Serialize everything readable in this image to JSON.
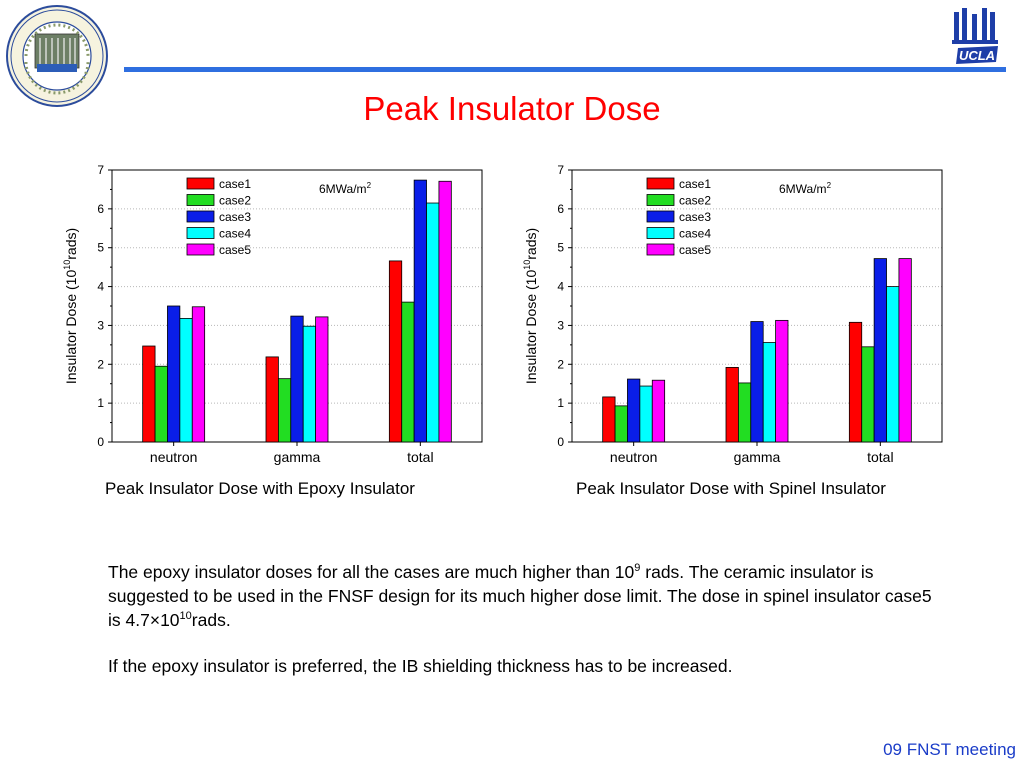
{
  "slide": {
    "title": "Peak Insulator Dose",
    "footer": "09 FNST meeting",
    "seal_text": "SCHOOL OF ENGINEERING AND APPLIED SCIENCE · UCLA",
    "logo_text": "UCLA"
  },
  "colors": {
    "title": "#ff0000",
    "rule": "#2f6fe0",
    "footer": "#1a3cc8",
    "case1": "#ff0000",
    "case2": "#22dd22",
    "case3": "#0a1ee8",
    "case4": "#00ffff",
    "case5": "#ff00ff"
  },
  "chart_data": [
    {
      "type": "bar",
      "caption": "Peak Insulator Dose with Epoxy Insulator",
      "annotation": "6MWa/m",
      "annotation_sup": "2",
      "ylabel_main": "Insulator Dose (10",
      "ylabel_sup": "10",
      "ylabel_end": "rads)",
      "ylim": [
        0,
        7
      ],
      "yticks": [
        0,
        1,
        2,
        3,
        4,
        5,
        6,
        7
      ],
      "categories": [
        "neutron",
        "gamma",
        "total"
      ],
      "legend_position": "top-left",
      "grid": true,
      "series": [
        {
          "name": "case1",
          "values": [
            2.47,
            2.19,
            4.66
          ]
        },
        {
          "name": "case2",
          "values": [
            1.95,
            1.63,
            3.6
          ]
        },
        {
          "name": "case3",
          "values": [
            3.5,
            3.24,
            6.74
          ]
        },
        {
          "name": "case4",
          "values": [
            3.18,
            2.98,
            6.15
          ]
        },
        {
          "name": "case5",
          "values": [
            3.48,
            3.22,
            6.71
          ]
        }
      ]
    },
    {
      "type": "bar",
      "caption": "Peak Insulator Dose with Spinel Insulator",
      "annotation": "6MWa/m",
      "annotation_sup": "2",
      "ylabel_main": "Insulator Dose (10",
      "ylabel_sup": "10",
      "ylabel_end": "rads)",
      "ylim": [
        0,
        7
      ],
      "yticks": [
        0,
        1,
        2,
        3,
        4,
        5,
        6,
        7
      ],
      "categories": [
        "neutron",
        "gamma",
        "total"
      ],
      "legend_position": "top-left",
      "grid": true,
      "series": [
        {
          "name": "case1",
          "values": [
            1.16,
            1.92,
            3.08
          ]
        },
        {
          "name": "case2",
          "values": [
            0.93,
            1.52,
            2.45
          ]
        },
        {
          "name": "case3",
          "values": [
            1.62,
            3.1,
            4.72
          ]
        },
        {
          "name": "case4",
          "values": [
            1.44,
            2.56,
            4.0
          ]
        },
        {
          "name": "case5",
          "values": [
            1.59,
            3.13,
            4.72
          ]
        }
      ]
    }
  ],
  "body": {
    "p1_a": "The epoxy insulator doses for all the cases are much higher than 10",
    "p1_sup1": "9",
    "p1_b": " rads. The ceramic insulator is suggested to be used in the FNSF design for its much higher dose limit. The dose in spinel insulator case5 is 4.7",
    "p1_times": "×",
    "p1_c": "10",
    "p1_sup2": "10",
    "p1_d": "rads.",
    "p2": "If the epoxy insulator is preferred, the IB shielding thickness has to be increased."
  }
}
